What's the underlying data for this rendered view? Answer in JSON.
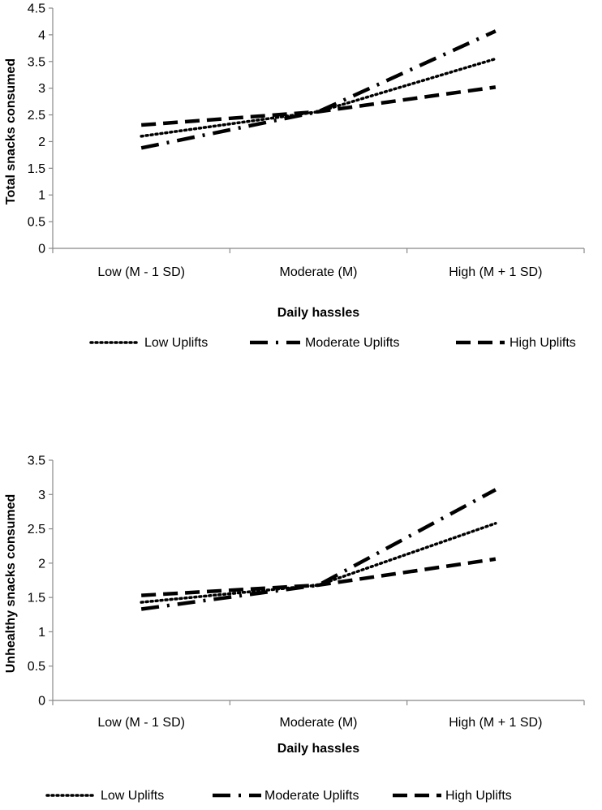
{
  "chart_data": [
    {
      "type": "line",
      "title": "",
      "xlabel": "Daily hassles",
      "ylabel": "Total snacks consumed",
      "categories": [
        "Low (M - 1 SD)",
        "Moderate (M)",
        "High (M + 1 SD)"
      ],
      "ylim": [
        0,
        4.5
      ],
      "yticks": [
        "0",
        "0.5",
        "1",
        "1.5",
        "2",
        "2.5",
        "3",
        "3.5",
        "4",
        "4.5"
      ],
      "legend_position": "bottom",
      "series": [
        {
          "name": "Low Uplifts",
          "style": "dotted",
          "values": [
            2.1,
            2.56,
            3.55
          ]
        },
        {
          "name": "Moderate Uplifts",
          "style": "dashdot",
          "values": [
            1.88,
            2.56,
            4.07
          ]
        },
        {
          "name": "High Uplifts",
          "style": "dashed",
          "values": [
            2.31,
            2.56,
            3.02
          ]
        }
      ]
    },
    {
      "type": "line",
      "title": "",
      "xlabel": "Daily hassles",
      "ylabel": "Unhealthy snacks consumed",
      "categories": [
        "Low (M - 1 SD)",
        "Moderate (M)",
        "High (M + 1 SD)"
      ],
      "ylim": [
        0,
        3.5
      ],
      "yticks": [
        "0",
        "0.5",
        "1",
        "1.5",
        "2",
        "2.5",
        "3",
        "3.5"
      ],
      "legend_position": "bottom",
      "series": [
        {
          "name": "Low Uplifts",
          "style": "dotted",
          "values": [
            1.43,
            1.68,
            2.58
          ]
        },
        {
          "name": "Moderate Uplifts",
          "style": "dashdot",
          "values": [
            1.33,
            1.68,
            3.07
          ]
        },
        {
          "name": "High Uplifts",
          "style": "dashed",
          "values": [
            1.53,
            1.68,
            2.06
          ]
        }
      ]
    }
  ]
}
